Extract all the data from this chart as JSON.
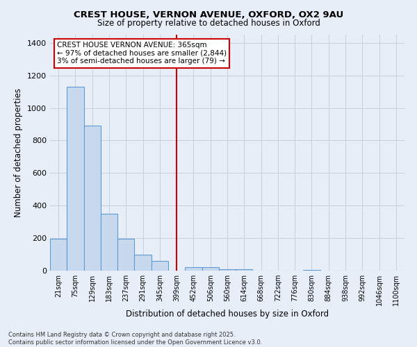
{
  "title_line1": "CREST HOUSE, VERNON AVENUE, OXFORD, OX2 9AU",
  "title_line2": "Size of property relative to detached houses in Oxford",
  "xlabel": "Distribution of detached houses by size in Oxford",
  "ylabel": "Number of detached properties",
  "bin_labels": [
    "21sqm",
    "75sqm",
    "129sqm",
    "183sqm",
    "237sqm",
    "291sqm",
    "345sqm",
    "399sqm",
    "452sqm",
    "506sqm",
    "560sqm",
    "614sqm",
    "668sqm",
    "722sqm",
    "776sqm",
    "830sqm",
    "884sqm",
    "938sqm",
    "992sqm",
    "1046sqm",
    "1100sqm"
  ],
  "bar_values": [
    195,
    1130,
    890,
    350,
    195,
    100,
    60,
    0,
    20,
    20,
    10,
    10,
    0,
    0,
    0,
    5,
    0,
    0,
    0,
    0,
    0
  ],
  "bar_color": "#c8d9ee",
  "bar_edge_color": "#5b9bd5",
  "background_color": "#e8eef8",
  "grid_color": "#d0d8e8",
  "annotation_text_line1": "CREST HOUSE VERNON AVENUE: 365sqm",
  "annotation_text_line2": "← 97% of detached houses are smaller (2,844)",
  "annotation_text_line3": "3% of semi-detached houses are larger (79) →",
  "annotation_box_color": "#ffffff",
  "annotation_box_edge": "#cc0000",
  "ylim": [
    0,
    1450
  ],
  "yticks": [
    0,
    200,
    400,
    600,
    800,
    1000,
    1200,
    1400
  ],
  "footer_line1": "Contains HM Land Registry data © Crown copyright and database right 2025.",
  "footer_line2": "Contains public sector information licensed under the Open Government Licence v3.0.",
  "red_line_color": "#cc0000",
  "red_line_x": 7.0
}
